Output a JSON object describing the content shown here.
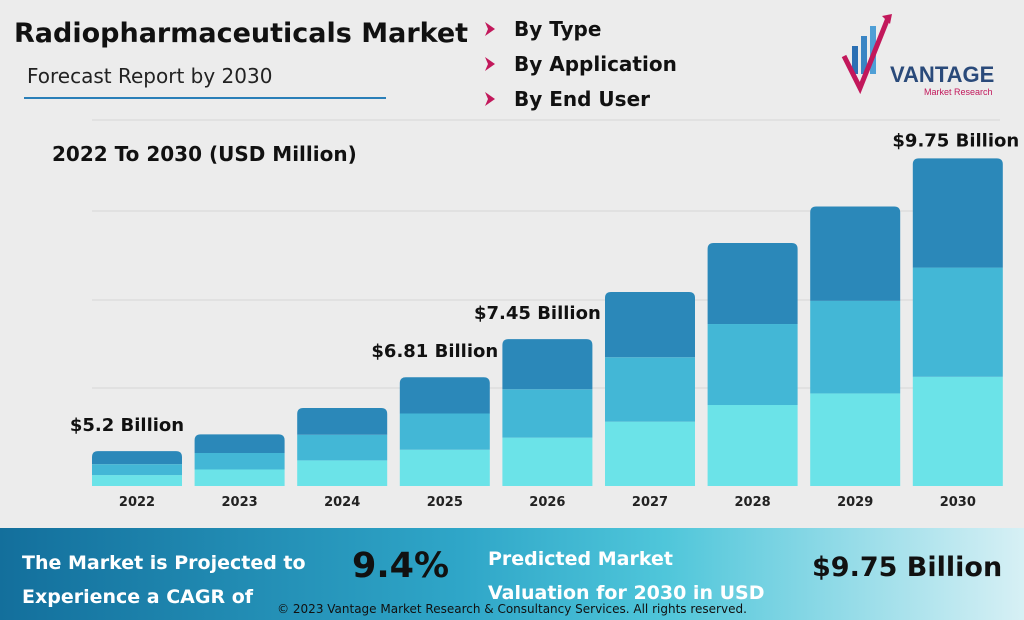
{
  "header": {
    "title": "Radiopharmaceuticals Market",
    "subtitle": "Forecast Report by 2030"
  },
  "segments": [
    {
      "label": "By Type",
      "icon": "chevron-right-icon"
    },
    {
      "label": "By Application",
      "icon": "chevron-right-icon"
    },
    {
      "label": "By End User",
      "icon": "chevron-right-icon"
    }
  ],
  "logo": {
    "name": "VANTAGE",
    "tagline": "Market Research"
  },
  "colors": {
    "accent": "#c2185b",
    "seg_bottom": "#6be3e8",
    "seg_middle": "#43b7d6",
    "seg_top": "#2b88b9"
  },
  "chart_data": {
    "type": "bar",
    "stacked": true,
    "title": "2022 To 2030 (USD Million)",
    "categories": [
      "2022",
      "2023",
      "2024",
      "2025",
      "2026",
      "2027",
      "2028",
      "2029",
      "2030"
    ],
    "series": [
      {
        "values": [
          0.84,
          1.27,
          1.97,
          2.79,
          3.72,
          4.95,
          6.23,
          7.12,
          8.4
        ]
      },
      {
        "values": [
          0.84,
          1.27,
          1.97,
          2.79,
          3.72,
          4.95,
          6.23,
          7.12,
          8.4
        ]
      },
      {
        "values": [
          1.0,
          1.43,
          2.06,
          2.79,
          3.86,
          5.02,
          6.23,
          7.26,
          8.4
        ]
      }
    ],
    "totals": [
      2.68,
      3.97,
      6.0,
      8.37,
      11.3,
      14.92,
      18.69,
      21.5,
      25.2
    ],
    "annotations": [
      {
        "category": "2022",
        "label": "$5.2 Billion"
      },
      {
        "category": "2025",
        "label": "$6.81 Billion"
      },
      {
        "category": "2026",
        "label": "$7.45 Billion"
      },
      {
        "category": "2030",
        "label": "$9.75 Billion"
      }
    ],
    "grid": true
  },
  "footer": {
    "cagr_text_line1": "The Market is Projected to",
    "cagr_text_line2": "Experience a CAGR of",
    "cagr_value": "9.4%",
    "valuation_text_line1": "Predicted Market",
    "valuation_text_line2": "Valuation for 2030 in USD",
    "valuation_value": "$9.75 Billion",
    "copyright": "© 2023 Vantage Market Research & Consultancy Services. All rights reserved."
  }
}
